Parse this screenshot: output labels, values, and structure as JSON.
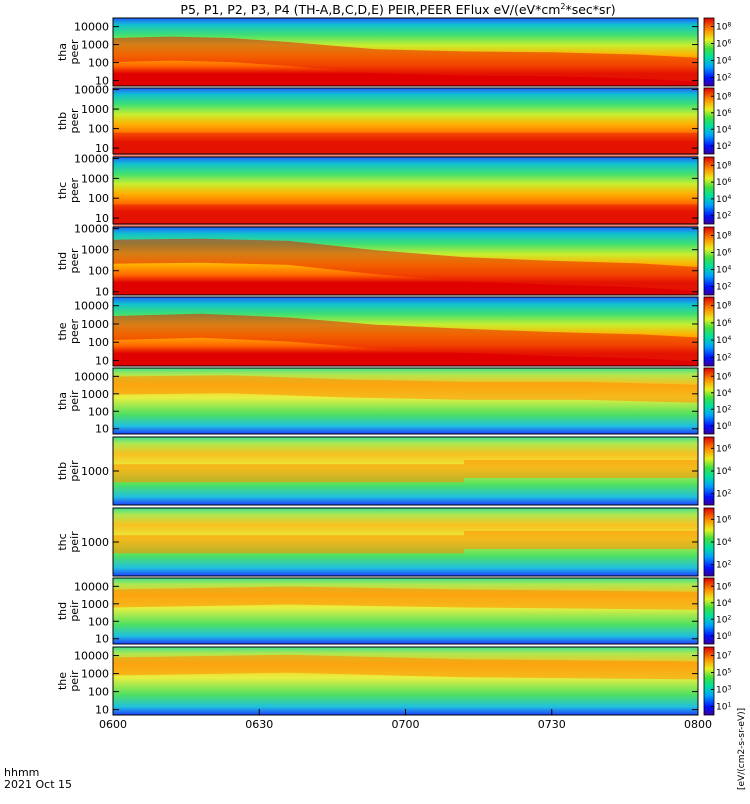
{
  "title": "P5, P1, P2, P3, P4 (TH-A,B,C,D,E) PEIR,PEER EFlux eV/(eV*cm",
  "title_sup": "2",
  "title_tail": "*sec*sr)",
  "time_axis": {
    "label_top": "hhmm",
    "label_bottom": "2021 Oct 15",
    "ticks": [
      "0600",
      "0630",
      "0700",
      "0730",
      "0800"
    ]
  },
  "colorbar_label": "[eV/(cm2-s-sr-eV)]",
  "chart_data": {
    "type": "heatmap",
    "x_range": [
      "0600",
      "0800"
    ],
    "panels": [
      {
        "id": "tha-peer",
        "probe": "tha",
        "product": "peer",
        "yscale": "log",
        "ylim": [
          5,
          30000
        ],
        "ytick_values": [
          10,
          100,
          1000,
          10000
        ],
        "ytick_labels": [
          "10",
          "100",
          "1000",
          "10000"
        ],
        "zticks": [
          "10^2",
          "10^4",
          "10^6",
          "10^8"
        ],
        "peak_energy": {
          "x": [
            0,
            0.1,
            0.2,
            0.3,
            0.45,
            0.6,
            0.75,
            0.9,
            1
          ],
          "y": [
            500,
            600,
            500,
            300,
            120,
            90,
            80,
            60,
            40
          ]
        }
      },
      {
        "id": "thb-peer",
        "probe": "thb",
        "product": "peer",
        "yscale": "log",
        "ylim": [
          5,
          12000
        ],
        "ytick_values": [
          10,
          100,
          1000,
          10000
        ],
        "ytick_labels": [
          "10",
          "100",
          "1000",
          "10000"
        ],
        "zticks": [
          "10^2",
          "10^4",
          "10^6",
          "10^8"
        ],
        "peak_energy": {
          "x": [
            0,
            1
          ],
          "y": [
            15,
            15
          ]
        }
      },
      {
        "id": "thc-peer",
        "probe": "thc",
        "product": "peer",
        "yscale": "log",
        "ylim": [
          5,
          12000
        ],
        "ytick_values": [
          10,
          100,
          1000,
          10000
        ],
        "ytick_labels": [
          "10",
          "100",
          "1000",
          "10000"
        ],
        "zticks": [
          "10^2",
          "10^4",
          "10^6",
          "10^8"
        ],
        "peak_energy": {
          "x": [
            0,
            1
          ],
          "y": [
            12,
            12
          ]
        }
      },
      {
        "id": "thd-peer",
        "probe": "thd",
        "product": "peer",
        "yscale": "log",
        "ylim": [
          7,
          12000
        ],
        "ytick_values": [
          10,
          100,
          1000,
          10000
        ],
        "ytick_labels": [
          "10",
          "100",
          "1000",
          "10000"
        ],
        "zticks": [
          "10^2",
          "10^4",
          "10^6",
          "10^8"
        ],
        "peak_energy": {
          "x": [
            0,
            0.15,
            0.3,
            0.45,
            0.6,
            0.75,
            0.9,
            1
          ],
          "y": [
            800,
            900,
            700,
            250,
            120,
            80,
            60,
            40
          ]
        }
      },
      {
        "id": "the-peer",
        "probe": "the",
        "product": "peer",
        "yscale": "log",
        "ylim": [
          5,
          30000
        ],
        "ytick_values": [
          10,
          100,
          1000,
          10000
        ],
        "ytick_labels": [
          "10",
          "100",
          "1000",
          "10000"
        ],
        "zticks": [
          "10^2",
          "10^4",
          "10^6",
          "10^8"
        ],
        "peak_energy": {
          "x": [
            0,
            0.15,
            0.3,
            0.45,
            0.6,
            0.75,
            0.9,
            1
          ],
          "y": [
            600,
            800,
            500,
            200,
            120,
            80,
            60,
            40
          ]
        }
      },
      {
        "id": "tha-peir",
        "probe": "tha",
        "product": "peir",
        "yscale": "log",
        "ylim": [
          5,
          30000
        ],
        "ytick_values": [
          10,
          100,
          1000,
          10000
        ],
        "ytick_labels": [
          "10",
          "100",
          "1000",
          "10000"
        ],
        "zticks": [
          "10^0",
          "10^2",
          "10^4",
          "10^6"
        ],
        "peak_energy": {
          "x": [
            0,
            0.2,
            0.4,
            0.6,
            0.8,
            1
          ],
          "y": [
            3000,
            3500,
            2000,
            1500,
            1500,
            1000
          ]
        }
      },
      {
        "id": "thb-peir",
        "probe": "thb",
        "product": "peir",
        "yscale": "log",
        "ylim": [
          200,
          5000
        ],
        "ytick_values": [
          1000
        ],
        "ytick_labels": [
          "1000"
        ],
        "zticks": [
          "10^2",
          "10^4",
          "10^6"
        ],
        "peak_energy": {
          "x": [
            0,
            0.6,
            0.6,
            1
          ],
          "y": [
            900,
            900,
            1100,
            1100
          ]
        }
      },
      {
        "id": "thc-peir",
        "probe": "thc",
        "product": "peir",
        "yscale": "log",
        "ylim": [
          200,
          5000
        ],
        "ytick_values": [
          1000
        ],
        "ytick_labels": [
          "1000"
        ],
        "zticks": [
          "10^2",
          "10^4",
          "10^6"
        ],
        "peak_energy": {
          "x": [
            0,
            0.6,
            0.6,
            1
          ],
          "y": [
            900,
            900,
            1100,
            1100
          ]
        }
      },
      {
        "id": "thd-peir",
        "probe": "thd",
        "product": "peir",
        "yscale": "log",
        "ylim": [
          5,
          30000
        ],
        "ytick_values": [
          10,
          100,
          1000,
          10000
        ],
        "ytick_labels": [
          "10",
          "100",
          "1000",
          "10000"
        ],
        "zticks": [
          "10^0",
          "10^2",
          "10^4",
          "10^6"
        ],
        "peak_energy": {
          "x": [
            0,
            0.3,
            0.6,
            1
          ],
          "y": [
            2000,
            3000,
            2000,
            1500
          ]
        }
      },
      {
        "id": "the-peir",
        "probe": "the",
        "product": "peir",
        "yscale": "log",
        "ylim": [
          5,
          30000
        ],
        "ytick_values": [
          10,
          100,
          1000,
          10000
        ],
        "ytick_labels": [
          "10",
          "100",
          "1000",
          "10000"
        ],
        "zticks": [
          "10^1",
          "10^3",
          "10^5",
          "10^7"
        ],
        "peak_energy": {
          "x": [
            0,
            0.3,
            0.6,
            1
          ],
          "y": [
            2500,
            3500,
            2000,
            1500
          ]
        }
      }
    ]
  }
}
